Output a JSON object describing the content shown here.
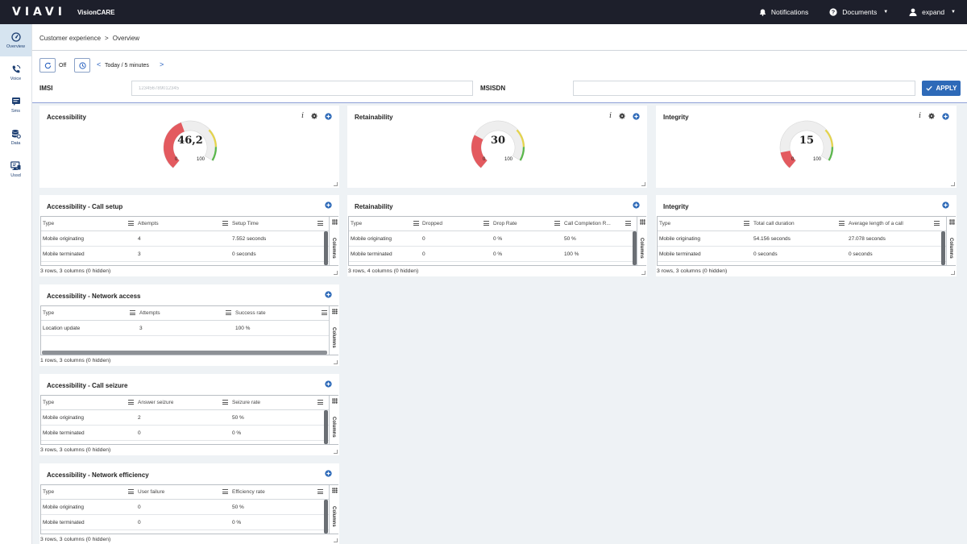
{
  "topbar": {
    "logo": "VIAVI",
    "product": "VisionCARE",
    "notifications": "Notifications",
    "documents": "Documents",
    "user": "expand"
  },
  "sidebar": {
    "items": [
      {
        "label": "Overview",
        "icon": "speedometer-icon",
        "active": true
      },
      {
        "label": "Voice",
        "icon": "phone-icon",
        "active": false
      },
      {
        "label": "Sms",
        "icon": "message-icon",
        "active": false
      },
      {
        "label": "Data",
        "icon": "database-icon",
        "active": false
      },
      {
        "label": "Ussd",
        "icon": "screen-icon",
        "active": false
      }
    ]
  },
  "breadcrumb": {
    "parent": "Customer experience",
    "separator": ">",
    "current": "Overview"
  },
  "controls": {
    "refresh_state": "Off",
    "time_range": "Today / 5 minutes",
    "prev": "<",
    "next": ">"
  },
  "search": {
    "imsi_label": "IMSI",
    "imsi_value": "123456789012345",
    "msisdn_label": "MSISDN",
    "msisdn_value": "",
    "apply_label": "APPLY"
  },
  "gauges": [
    {
      "title": "Accessibility",
      "value": "46,2",
      "min": "0",
      "max": "100",
      "level": 46.2
    },
    {
      "title": "Retainability",
      "value": "30",
      "min": "0",
      "max": "100",
      "level": 30
    },
    {
      "title": "Integrity",
      "value": "15",
      "min": "0",
      "max": "100",
      "level": 15
    }
  ],
  "tables": {
    "call_setup": {
      "title": "Accessibility - Call setup",
      "columns": [
        "Type",
        "Attempts",
        "Setup Time"
      ],
      "rows": [
        [
          "Mobile originating",
          "4",
          "7.552 seconds"
        ],
        [
          "Mobile terminated",
          "3",
          "0 seconds"
        ]
      ],
      "footer": "3 rows, 3 columns (0 hidden)"
    },
    "retainability": {
      "title": "Retainability",
      "columns": [
        "Type",
        "Dropped",
        "Drop Rate",
        "Call Completion R..."
      ],
      "rows": [
        [
          "Mobile originating",
          "0",
          "0 %",
          "50 %"
        ],
        [
          "Mobile terminated",
          "0",
          "0 %",
          "100 %"
        ]
      ],
      "footer": "3 rows, 4 columns (0 hidden)"
    },
    "integrity": {
      "title": "Integrity",
      "columns": [
        "Type",
        "Total call duration",
        "Average length of a call"
      ],
      "rows": [
        [
          "Mobile originating",
          "54.156 seconds",
          "27.078 seconds"
        ],
        [
          "Mobile terminated",
          "0 seconds",
          "0 seconds"
        ]
      ],
      "footer": "3 rows, 3 columns (0 hidden)"
    },
    "network_access": {
      "title": "Accessibility - Network access",
      "columns": [
        "Type",
        "Attempts",
        "Success rate"
      ],
      "rows": [
        [
          "Location update",
          "3",
          "100 %"
        ]
      ],
      "footer": "1 rows, 3 columns (0 hidden)"
    },
    "call_seizure": {
      "title": "Accessibility - Call seizure",
      "columns": [
        "Type",
        "Answer seizure",
        "Seizure rate"
      ],
      "rows": [
        [
          "Mobile originating",
          "2",
          "50 %"
        ],
        [
          "Mobile terminated",
          "0",
          "0 %"
        ]
      ],
      "footer": "3 rows, 3 columns (0 hidden)"
    },
    "network_efficiency": {
      "title": "Accessibility - Network efficiency",
      "columns": [
        "Type",
        "User failure",
        "Efficiency rate"
      ],
      "rows": [
        [
          "Mobile originating",
          "0",
          "50 %"
        ],
        [
          "Mobile terminated",
          "0",
          "0 %"
        ]
      ],
      "footer": "3 rows, 3 columns (0 hidden)"
    }
  },
  "columns_tab_label": "Columns",
  "colors": {
    "topbar": "#1d1f2b",
    "accent": "#2e6ab8",
    "gauge_red": "#e35a5f",
    "gauge_yellow": "#e5d44a",
    "gauge_green": "#59b84a"
  }
}
